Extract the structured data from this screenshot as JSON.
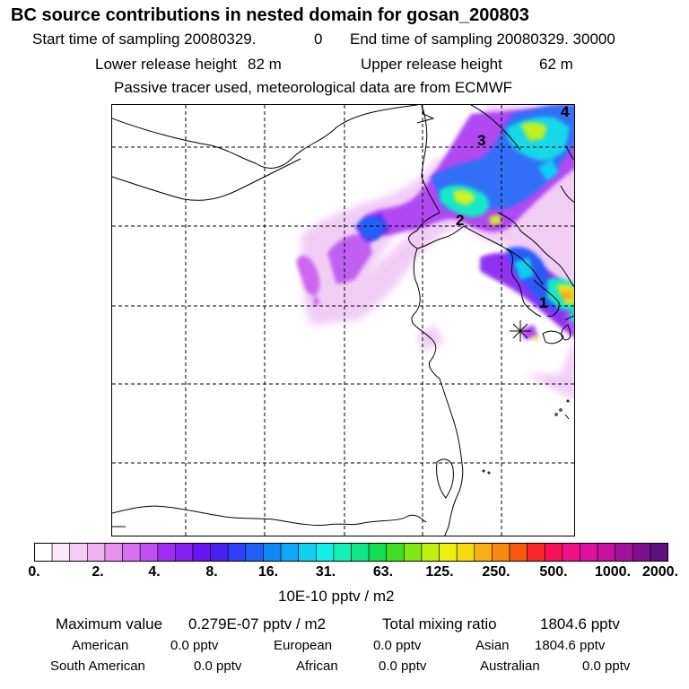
{
  "header": {
    "title": "BC  source contributions in nested domain for gosan_200803",
    "start_label": "Start time of sampling 20080329.",
    "start_value": "0",
    "end_label": "End time of sampling 20080329. 30000",
    "lower_label": "Lower release height",
    "lower_value": "82 m",
    "upper_label": "Upper release height",
    "upper_value": "62 m",
    "note": "Passive tracer used, meteorological data are from ECMWF"
  },
  "map": {
    "markers": [
      "1",
      "2",
      "3",
      "4"
    ],
    "station_symbol": "✳"
  },
  "colorbar": {
    "tick_labels": [
      "0.",
      "2.",
      "4.",
      "8.",
      "16.",
      "31.",
      "63.",
      "125.",
      "250.",
      "500.",
      "1000.",
      "2000."
    ],
    "unit": "10E-10 pptv / m2",
    "colors": [
      "#ffffff",
      "#fbe6fb",
      "#f5ccf5",
      "#eeb2f0",
      "#e88ff0",
      "#d870f0",
      "#c050f0",
      "#a02cf0",
      "#8420f0",
      "#6a14f0",
      "#4a20f0",
      "#3040f8",
      "#2060f8",
      "#1088f8",
      "#10a8f8",
      "#10d0f0",
      "#10f0e8",
      "#10f0b8",
      "#10e888",
      "#10e050",
      "#40e020",
      "#80e810",
      "#c0f010",
      "#f0f010",
      "#f8d810",
      "#f8b010",
      "#f88810",
      "#f85810",
      "#f82828",
      "#f81058",
      "#f01088",
      "#e010a0",
      "#c810a0",
      "#a01098",
      "#801090",
      "#601080"
    ]
  },
  "footer": {
    "max_label": "Maximum value",
    "max_value": "0.279E-07 pptv / m2",
    "total_label": "Total mixing ratio",
    "total_value": "1804.6 pptv",
    "regions": [
      {
        "name": "American",
        "value": "0.0 pptv"
      },
      {
        "name": "European",
        "value": "0.0 pptv"
      },
      {
        "name": "Asian",
        "value": "1804.6 pptv"
      },
      {
        "name": "South American",
        "value": "0.0 pptv"
      },
      {
        "name": "African",
        "value": "0.0 pptv"
      },
      {
        "name": "Australian",
        "value": "0.0 pptv"
      }
    ]
  }
}
